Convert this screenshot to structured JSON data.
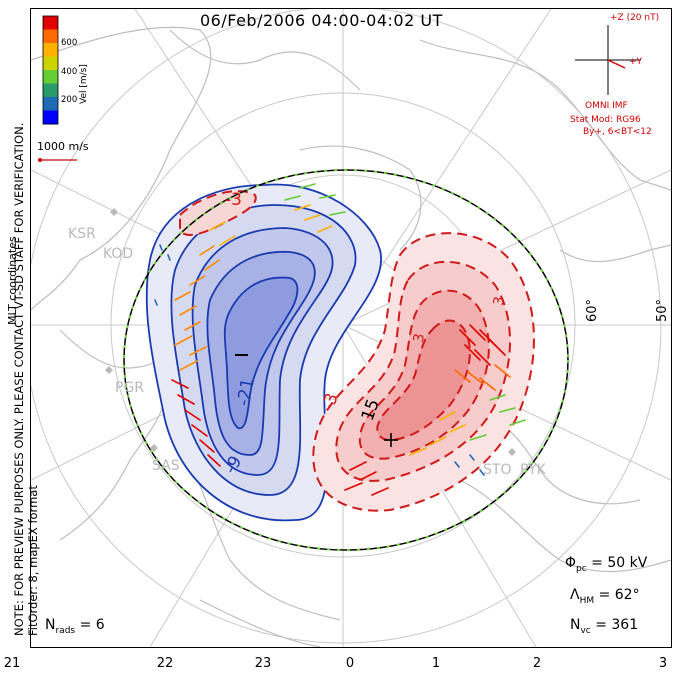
{
  "title": "06/Feb/2006 04:00-04:02 UT",
  "side_labels": {
    "coords": "MLT coordinates",
    "note": "NOTE: FOR PREVIEW PURPOSES ONLY. PLEASE CONTACT VT-SD STAFF FOR VERIFICATION.",
    "fit": "FitOrder: 8, mapEX format"
  },
  "colorbar": {
    "label": "Vel [m/s]",
    "ticks": [
      "600",
      "400",
      "200"
    ],
    "colors": [
      "#e00000",
      "#ff6a00",
      "#ffb000",
      "#ccd400",
      "#66cc33",
      "#2a9a6a",
      "#1f6ab5",
      "#0000ff"
    ]
  },
  "vector_scale": "1000 m/s",
  "imf": {
    "z_label": "+Z (20 nT)",
    "y_label": "+Y",
    "source": "OMNI IMF",
    "model": "Stat Mod: RG96",
    "condition": "By+, 6<BT<12"
  },
  "stations": [
    "KSR",
    "KOD",
    "PGR",
    "SAS",
    "STO",
    "PYK"
  ],
  "lat_labels": [
    "60°",
    "50°"
  ],
  "contour_labels": [
    "-21",
    "-3",
    "-3",
    "-9",
    "15",
    "3",
    "3"
  ],
  "potential_markers": {
    "min": "−",
    "max": "+"
  },
  "stats": {
    "phi_pc": {
      "sym": "Φ",
      "sub": "pc",
      "value": "= 50 kV"
    },
    "lambda_hm": {
      "sym": "Λ",
      "sub": "HM",
      "value": "= 62°"
    },
    "n_vc": {
      "sym": "N",
      "sub": "vc",
      "value": "= 361"
    },
    "n_rads": {
      "sym": "N",
      "sub": "rads",
      "value": "= 6"
    }
  },
  "x_ticks": [
    "21",
    "22",
    "23",
    "0",
    "1",
    "2",
    "3"
  ],
  "colors": {
    "negative": "#1a3bb0",
    "positive": "#d01a1a",
    "boundary": "#6fd13d"
  }
}
